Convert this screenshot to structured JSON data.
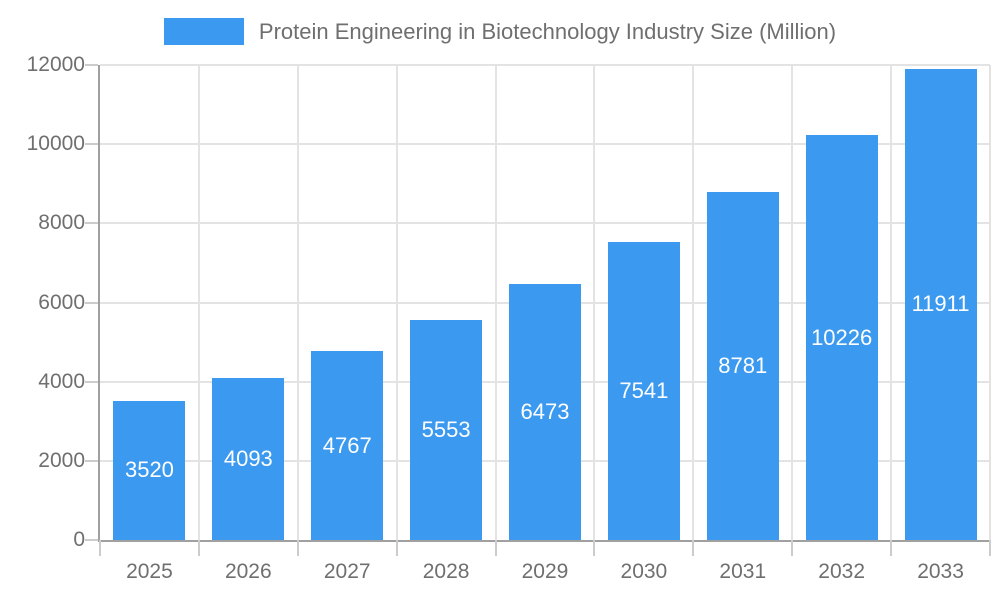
{
  "legend": {
    "label": "Protein Engineering in Biotechnology Industry Size (Million)"
  },
  "colors": {
    "bar": "#3B99F0",
    "axis_line": "#A0A0A0",
    "gridline": "#E3E3E3",
    "tick_mark": "#CCCCCC",
    "axis_text": "#6F6F6F",
    "legend_text": "#6F6F6F",
    "value_label_text": "#FFFFFF",
    "background": "#FFFFFF"
  },
  "chart_data": {
    "type": "bar",
    "title": "Protein Engineering in Biotechnology Industry Size (Million)",
    "categories": [
      "2025",
      "2026",
      "2027",
      "2028",
      "2029",
      "2030",
      "2031",
      "2032",
      "2033"
    ],
    "values": [
      3520,
      4093,
      4767,
      5553,
      6473,
      7541,
      8781,
      10226,
      11911
    ],
    "xlabel": "",
    "ylabel": "",
    "ylim": [
      0,
      12000
    ],
    "ytick_step": 2000,
    "ytick_labels": [
      "0",
      "2000",
      "4000",
      "6000",
      "8000",
      "10000",
      "12000"
    ],
    "grid": true,
    "legend_position": "top-center",
    "value_label_position": "inside-center",
    "bar_count": 9
  }
}
